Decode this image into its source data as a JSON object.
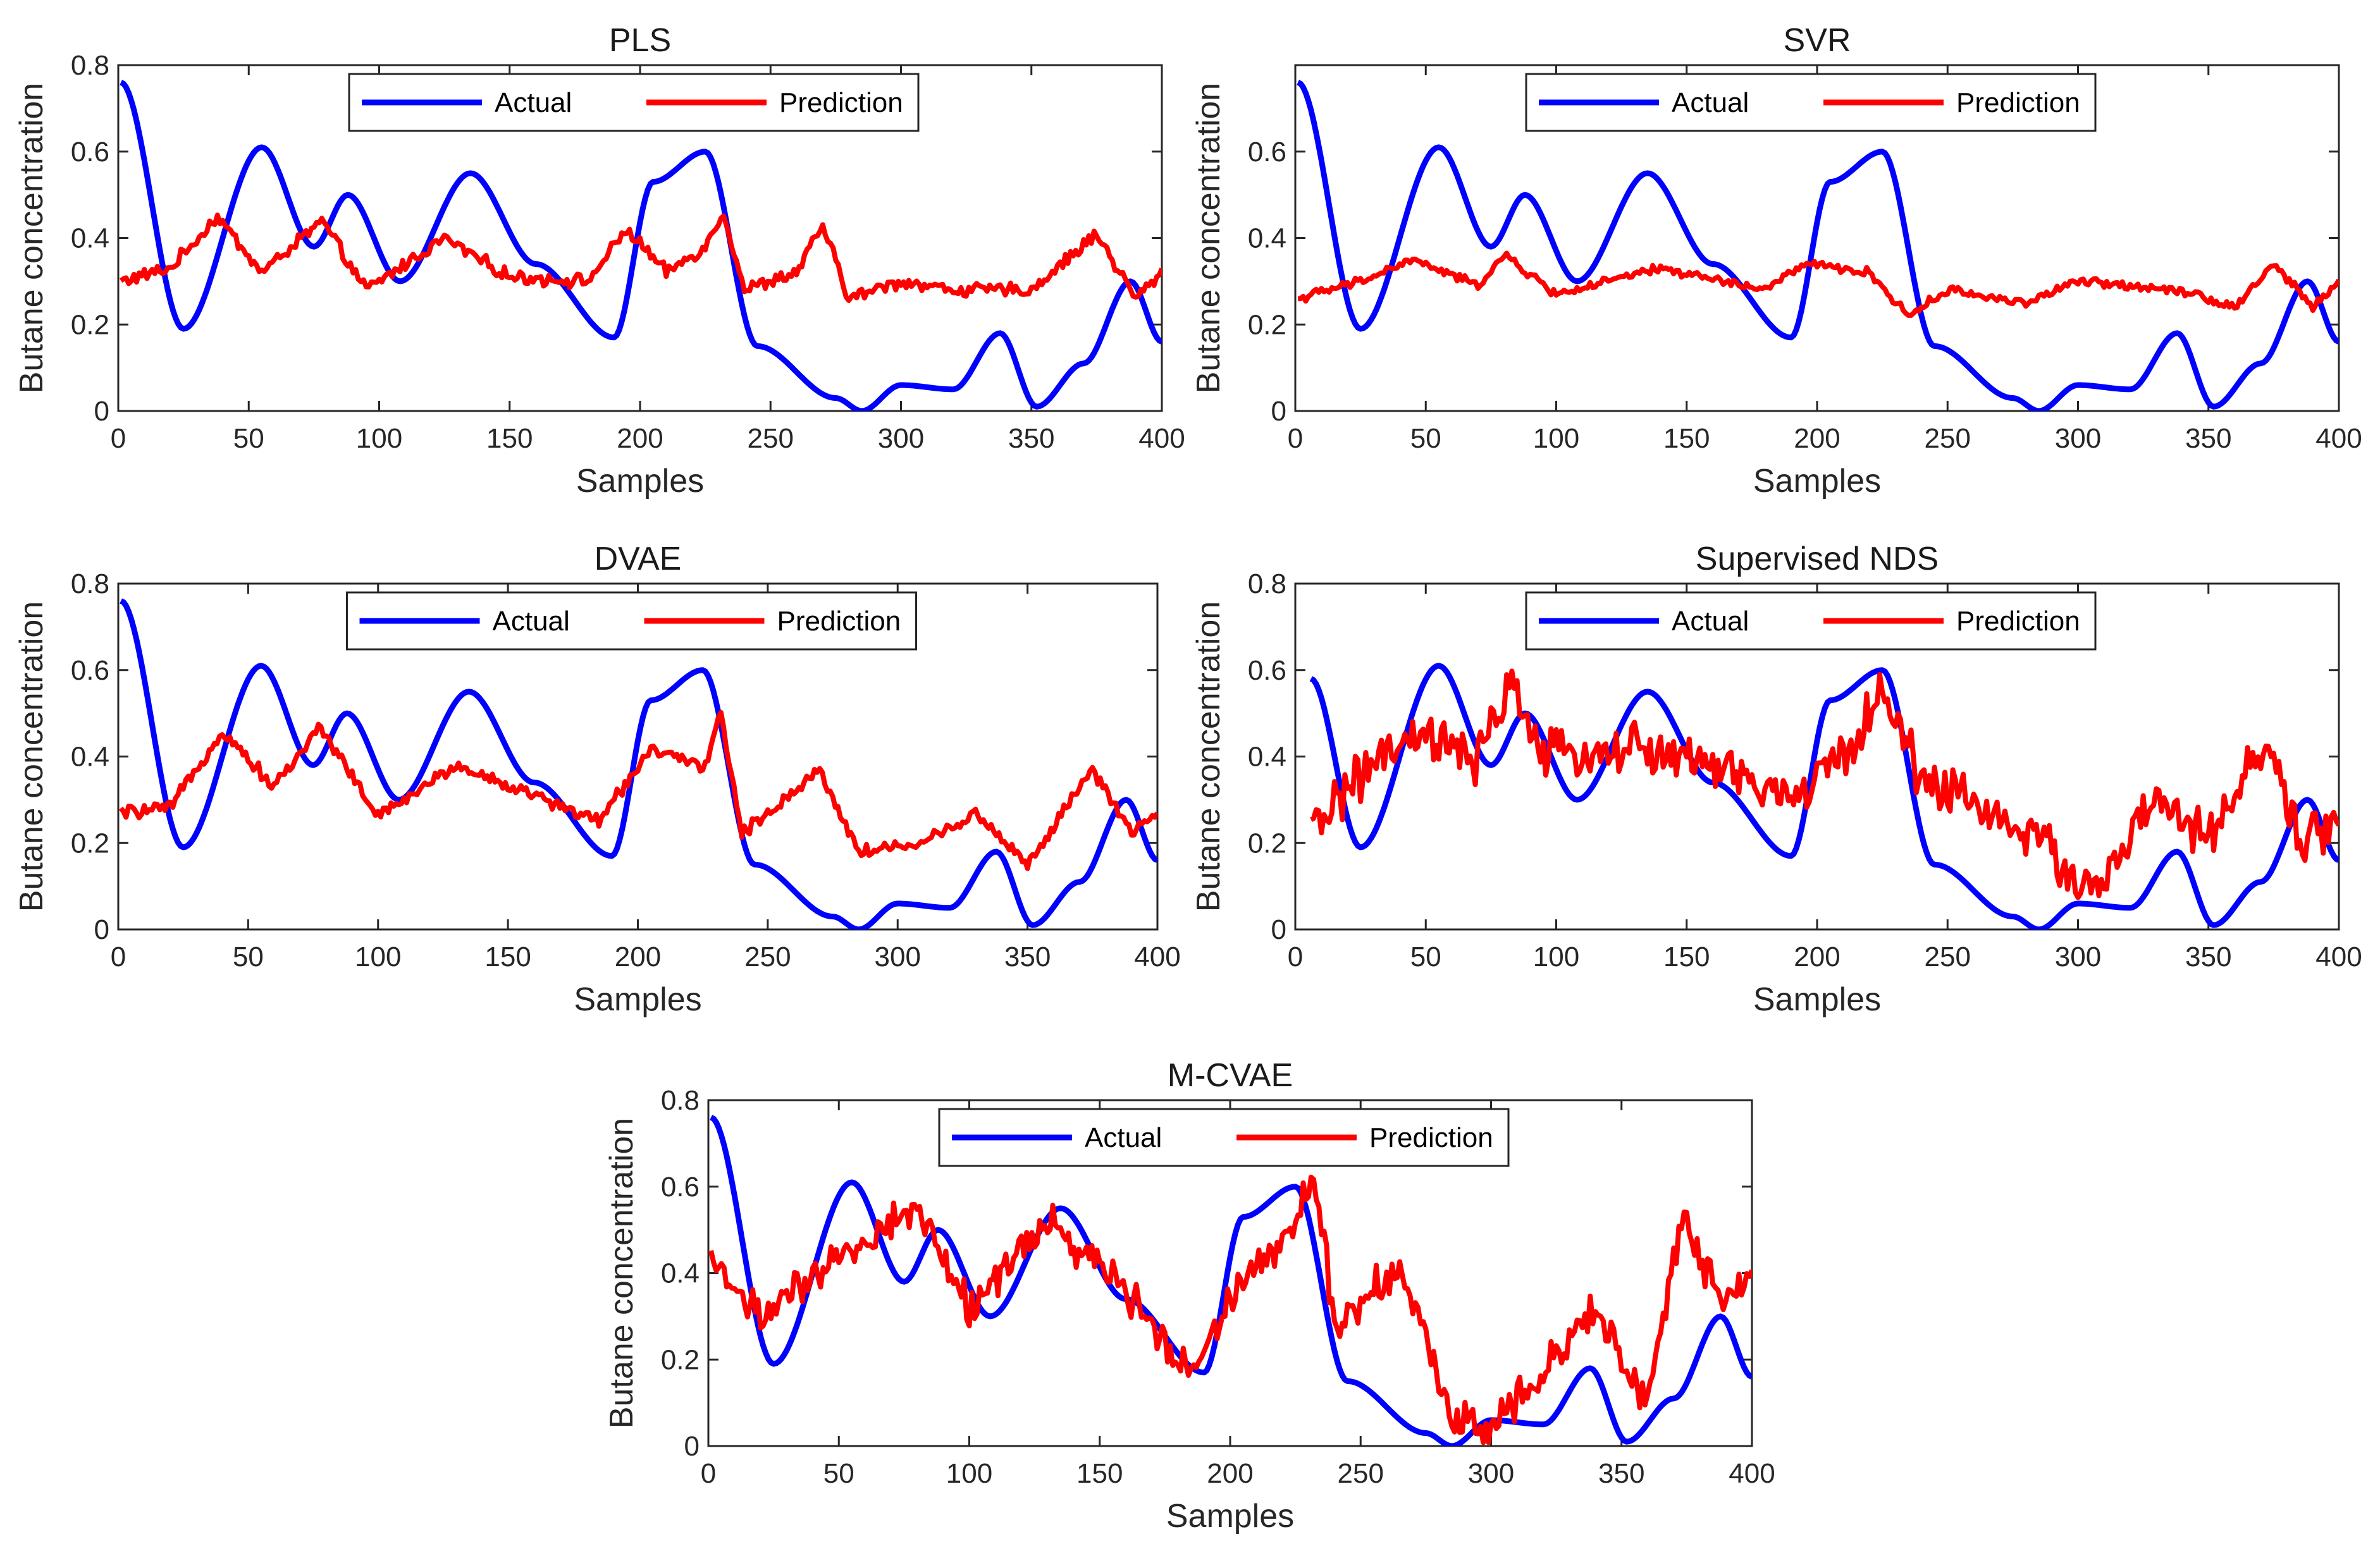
{
  "figure": {
    "series_names": [
      "Actual",
      "Prediction"
    ],
    "series_colors": {
      "Actual": "#0000FF",
      "Prediction": "#FF0000"
    }
  },
  "chart_data": [
    {
      "type": "line",
      "title": "PLS",
      "xlabel": "Samples",
      "ylabel": "Butane concentration",
      "xlim": [
        0,
        400
      ],
      "ylim": [
        0,
        0.8
      ],
      "xticks": [
        0,
        50,
        100,
        150,
        200,
        250,
        300,
        350,
        400
      ],
      "yticks": [
        0,
        0.2,
        0.4,
        0.6,
        0.8
      ],
      "legend": "top-center",
      "series": [
        {
          "name": "Actual",
          "x": [
            1,
            25,
            55,
            75,
            88,
            108,
            135,
            160,
            190,
            205,
            225,
            245,
            275,
            285,
            300,
            320,
            338,
            352,
            370,
            388,
            400
          ],
          "y": [
            0.76,
            0.19,
            0.61,
            0.38,
            0.5,
            0.3,
            0.55,
            0.34,
            0.17,
            0.53,
            0.6,
            0.15,
            0.03,
            0.0,
            0.06,
            0.05,
            0.18,
            0.01,
            0.11,
            0.3,
            0.16
          ]
        },
        {
          "name": "Prediction",
          "x": [
            1,
            20,
            38,
            55,
            78,
            95,
            125,
            150,
            180,
            195,
            210,
            225,
            232,
            240,
            260,
            270,
            280,
            300,
            320,
            350,
            375,
            390,
            400
          ],
          "y": [
            0.3,
            0.33,
            0.45,
            0.32,
            0.44,
            0.28,
            0.4,
            0.31,
            0.3,
            0.42,
            0.32,
            0.38,
            0.46,
            0.28,
            0.32,
            0.43,
            0.26,
            0.3,
            0.28,
            0.28,
            0.41,
            0.26,
            0.32
          ]
        }
      ]
    },
    {
      "type": "line",
      "title": "SVR",
      "xlabel": "Samples",
      "ylabel": "Butane concentration",
      "xlim": [
        0,
        400
      ],
      "ylim": [
        0,
        0.8
      ],
      "xticks": [
        0,
        50,
        100,
        150,
        200,
        250,
        300,
        350,
        400
      ],
      "yticks": [
        0,
        0.2,
        0.4,
        0.6
      ],
      "legend": "top-center",
      "series": [
        {
          "name": "Actual",
          "x": [
            1,
            25,
            55,
            75,
            88,
            108,
            135,
            160,
            190,
            205,
            225,
            245,
            275,
            285,
            300,
            320,
            338,
            352,
            370,
            388,
            400
          ],
          "y": [
            0.76,
            0.19,
            0.61,
            0.38,
            0.5,
            0.3,
            0.55,
            0.34,
            0.17,
            0.53,
            0.6,
            0.15,
            0.03,
            0.0,
            0.06,
            0.05,
            0.18,
            0.01,
            0.11,
            0.3,
            0.16
          ]
        },
        {
          "name": "Prediction",
          "x": [
            1,
            25,
            45,
            70,
            80,
            100,
            140,
            180,
            195,
            220,
            235,
            250,
            280,
            300,
            340,
            360,
            375,
            390,
            400
          ],
          "y": [
            0.26,
            0.3,
            0.35,
            0.29,
            0.36,
            0.27,
            0.33,
            0.28,
            0.34,
            0.32,
            0.22,
            0.28,
            0.25,
            0.3,
            0.28,
            0.24,
            0.34,
            0.24,
            0.3
          ]
        }
      ]
    },
    {
      "type": "line",
      "title": "DVAE",
      "xlabel": "Samples",
      "ylabel": "Butane concentration",
      "xlim": [
        0,
        400
      ],
      "ylim": [
        0,
        0.8
      ],
      "xticks": [
        0,
        50,
        100,
        150,
        200,
        250,
        300,
        350,
        400
      ],
      "yticks": [
        0,
        0.2,
        0.4,
        0.6,
        0.8
      ],
      "legend": "top-center",
      "series": [
        {
          "name": "Actual",
          "x": [
            1,
            25,
            55,
            75,
            88,
            108,
            135,
            160,
            190,
            205,
            225,
            245,
            275,
            285,
            300,
            320,
            338,
            352,
            370,
            388,
            400
          ],
          "y": [
            0.76,
            0.19,
            0.61,
            0.38,
            0.5,
            0.3,
            0.55,
            0.34,
            0.17,
            0.53,
            0.6,
            0.15,
            0.03,
            0.0,
            0.06,
            0.05,
            0.18,
            0.01,
            0.11,
            0.3,
            0.16
          ]
        },
        {
          "name": "Prediction",
          "x": [
            1,
            20,
            40,
            60,
            78,
            100,
            130,
            160,
            185,
            205,
            225,
            232,
            240,
            270,
            285,
            310,
            330,
            350,
            375,
            390,
            400
          ],
          "y": [
            0.27,
            0.28,
            0.46,
            0.33,
            0.47,
            0.26,
            0.38,
            0.31,
            0.25,
            0.42,
            0.37,
            0.5,
            0.22,
            0.37,
            0.18,
            0.2,
            0.27,
            0.15,
            0.37,
            0.22,
            0.27
          ]
        }
      ]
    },
    {
      "type": "line",
      "title": "Supervised NDS",
      "xlabel": "Samples",
      "ylabel": "Butane concentration",
      "xlim": [
        0,
        400
      ],
      "ylim": [
        0,
        0.8
      ],
      "xticks": [
        0,
        50,
        100,
        150,
        200,
        250,
        300,
        350,
        400
      ],
      "yticks": [
        0,
        0.2,
        0.4,
        0.6,
        0.8
      ],
      "legend": "top-center",
      "series": [
        {
          "name": "Actual",
          "x": [
            6,
            25,
            55,
            75,
            88,
            108,
            135,
            160,
            190,
            205,
            225,
            245,
            275,
            285,
            300,
            320,
            338,
            352,
            370,
            388,
            400
          ],
          "y": [
            0.58,
            0.19,
            0.61,
            0.38,
            0.5,
            0.3,
            0.55,
            0.34,
            0.17,
            0.53,
            0.6,
            0.15,
            0.03,
            0.0,
            0.06,
            0.05,
            0.18,
            0.01,
            0.11,
            0.3,
            0.16
          ]
        },
        {
          "name": "Prediction",
          "x": [
            6,
            15,
            30,
            50,
            70,
            82,
            95,
            130,
            160,
            190,
            210,
            225,
            240,
            260,
            290,
            305,
            330,
            350,
            372,
            385,
            400
          ],
          "y": [
            0.22,
            0.3,
            0.38,
            0.45,
            0.38,
            0.58,
            0.4,
            0.42,
            0.38,
            0.3,
            0.4,
            0.55,
            0.35,
            0.3,
            0.18,
            0.08,
            0.3,
            0.2,
            0.44,
            0.2,
            0.25
          ]
        }
      ]
    },
    {
      "type": "line",
      "title": "M-CVAE",
      "xlabel": "Samples",
      "ylabel": "Butane concentration",
      "xlim": [
        0,
        400
      ],
      "ylim": [
        0,
        0.8
      ],
      "xticks": [
        0,
        50,
        100,
        150,
        200,
        250,
        300,
        350,
        400
      ],
      "yticks": [
        0,
        0.2,
        0.4,
        0.6,
        0.8
      ],
      "legend": "top-center",
      "series": [
        {
          "name": "Actual",
          "x": [
            1,
            25,
            55,
            75,
            88,
            108,
            135,
            160,
            190,
            205,
            225,
            245,
            275,
            285,
            300,
            320,
            338,
            352,
            370,
            388,
            400
          ],
          "y": [
            0.76,
            0.19,
            0.61,
            0.38,
            0.5,
            0.3,
            0.55,
            0.34,
            0.17,
            0.53,
            0.6,
            0.15,
            0.03,
            0.0,
            0.06,
            0.05,
            0.18,
            0.01,
            0.11,
            0.3,
            0.16
          ]
        },
        {
          "name": "Prediction",
          "x": [
            1,
            20,
            40,
            60,
            80,
            100,
            130,
            160,
            185,
            205,
            225,
            232,
            240,
            265,
            285,
            300,
            320,
            340,
            360,
            373,
            390,
            400
          ],
          "y": [
            0.43,
            0.3,
            0.38,
            0.48,
            0.55,
            0.32,
            0.52,
            0.36,
            0.17,
            0.4,
            0.5,
            0.65,
            0.28,
            0.42,
            0.06,
            0.05,
            0.18,
            0.32,
            0.1,
            0.52,
            0.32,
            0.4
          ]
        }
      ]
    }
  ]
}
